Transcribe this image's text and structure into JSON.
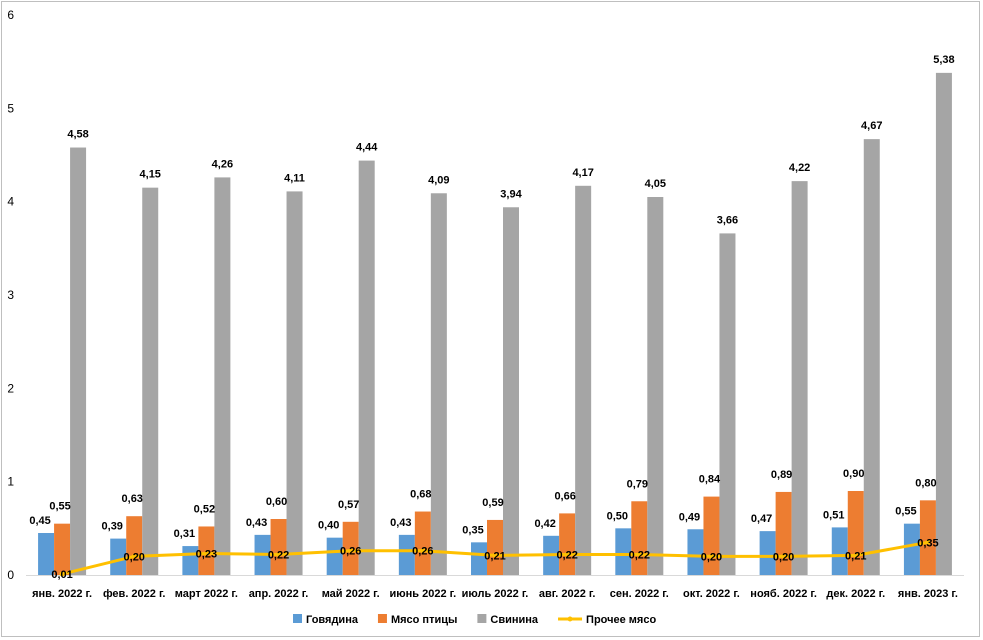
{
  "chart_data": {
    "type": "bar",
    "title": "",
    "xlabel": "",
    "ylabel": "",
    "ylim": [
      0,
      6
    ],
    "yticks": [
      "0",
      "1",
      "2",
      "3",
      "4",
      "5",
      "6"
    ],
    "grid": "off",
    "legend_position": "bottom",
    "categories": [
      "янв. 2022 г.",
      "фев. 2022 г.",
      "март 2022 г.",
      "апр. 2022 г.",
      "май 2022 г.",
      "июнь 2022 г.",
      "июль 2022 г.",
      "авг. 2022 г.",
      "сен. 2022 г.",
      "окт. 2022 г.",
      "нояб. 2022 г.",
      "дек. 2022 г.",
      "янв. 2023 г."
    ],
    "series": [
      {
        "name": "Говядина",
        "kind": "bar",
        "color": "#5b9bd5",
        "values": [
          0.45,
          0.39,
          0.31,
          0.43,
          0.4,
          0.43,
          0.35,
          0.42,
          0.5,
          0.49,
          0.47,
          0.51,
          0.55
        ],
        "labels": [
          "0,45",
          "0,39",
          "0,31",
          "0,43",
          "0,40",
          "0,43",
          "0,35",
          "0,42",
          "0,50",
          "0,49",
          "0,47",
          "0,51",
          "0,55"
        ]
      },
      {
        "name": "Мясо птицы",
        "kind": "bar",
        "color": "#ed7d31",
        "values": [
          0.55,
          0.63,
          0.52,
          0.6,
          0.57,
          0.68,
          0.59,
          0.66,
          0.79,
          0.84,
          0.89,
          0.9,
          0.8
        ],
        "labels": [
          "0,55",
          "0,63",
          "0,52",
          "0,60",
          "0,57",
          "0,68",
          "0,59",
          "0,66",
          "0,79",
          "0,84",
          "0,89",
          "0,90",
          "0,80"
        ]
      },
      {
        "name": "Свинина",
        "kind": "bar",
        "color": "#a5a5a5",
        "values": [
          4.58,
          4.15,
          4.26,
          4.11,
          4.44,
          4.09,
          3.94,
          4.17,
          4.05,
          3.66,
          4.22,
          4.67,
          5.38
        ],
        "labels": [
          "4,58",
          "4,15",
          "4,26",
          "4,11",
          "4,44",
          "4,09",
          "3,94",
          "4,17",
          "4,05",
          "3,66",
          "4,22",
          "4,67",
          "5,38"
        ]
      },
      {
        "name": "Прочее мясо",
        "kind": "line",
        "color": "#ffc000",
        "values": [
          0.01,
          0.2,
          0.23,
          0.22,
          0.26,
          0.26,
          0.21,
          0.22,
          0.22,
          0.2,
          0.2,
          0.21,
          0.35
        ],
        "labels": [
          "0,01",
          "0,20",
          "0,23",
          "0,22",
          "0,26",
          "0,26",
          "0,21",
          "0,22",
          "0,22",
          "0,20",
          "0,20",
          "0,21",
          "0,35"
        ]
      }
    ]
  }
}
